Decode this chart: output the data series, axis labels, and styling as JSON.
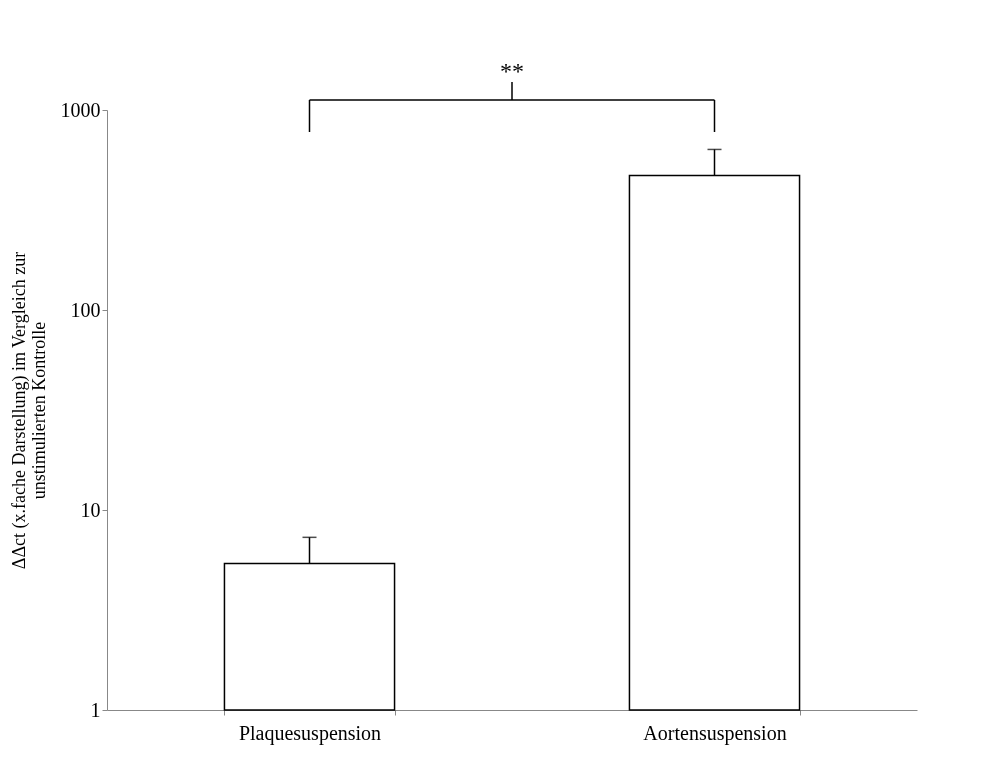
{
  "chart_data": {
    "type": "bar",
    "ylabel": "ΔΔct (x.fache Darstellung) im Vergleich zur\nunstimulierten Kontrolle",
    "categories": [
      "Plaquesuspension",
      "Aortensuspension"
    ],
    "series": [
      {
        "color": "#ffffff",
        "values": [
          5.4,
          470
        ],
        "errors": [
          [
            5.4,
            7.3
          ],
          [
            470,
            635
          ]
        ]
      }
    ],
    "ylim": [
      1,
      1000
    ],
    "yticks": [
      1,
      10,
      100,
      1000
    ],
    "log": true,
    "grid": false,
    "annotations": [
      "**"
    ]
  }
}
